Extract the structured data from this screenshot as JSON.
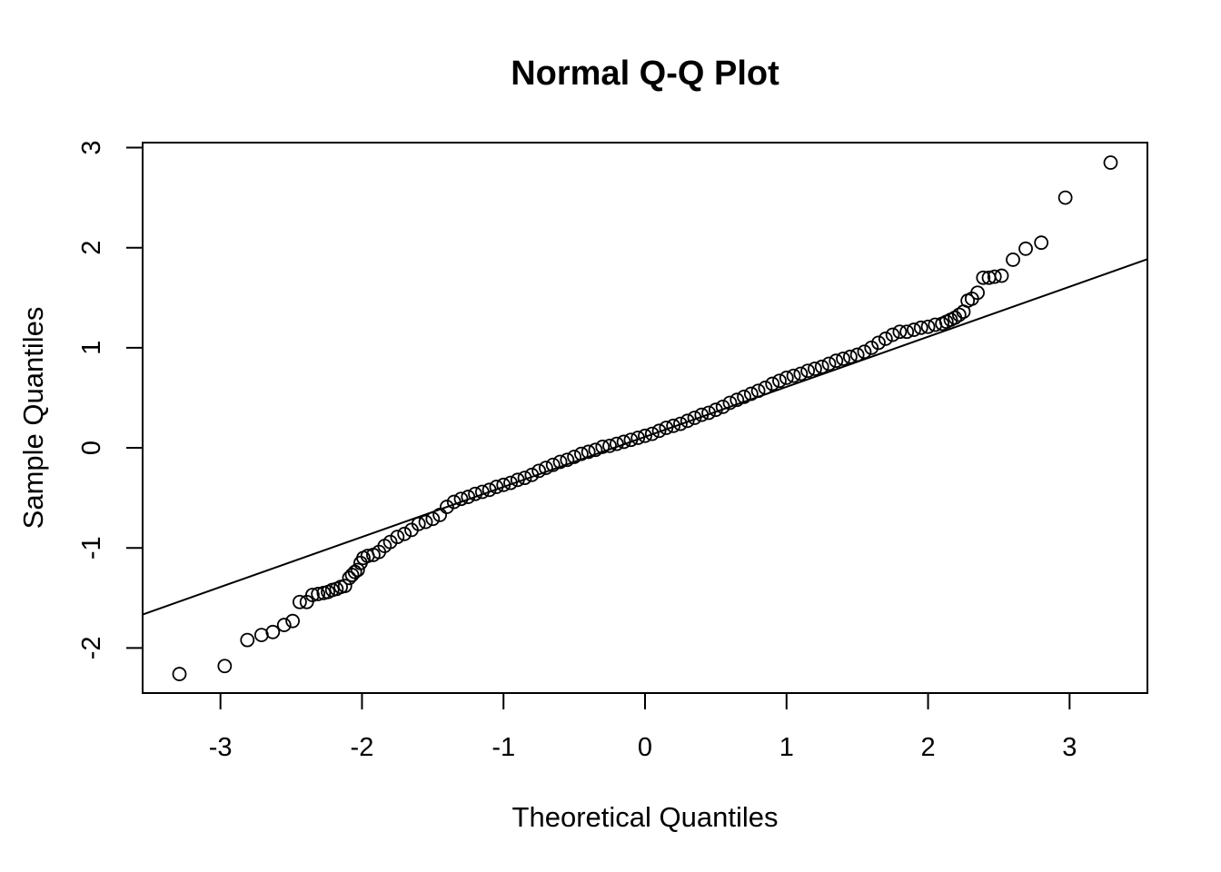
{
  "chart_data": {
    "type": "scatter",
    "title": "Normal Q-Q Plot",
    "xlabel": "Theoretical Quantiles",
    "ylabel": "Sample Quantiles",
    "xlim": [
      -3.55,
      3.55
    ],
    "ylim": [
      -2.45,
      3.05
    ],
    "x_ticks": [
      {
        "value": -3,
        "label": "-3"
      },
      {
        "value": -2,
        "label": "-2"
      },
      {
        "value": -1,
        "label": "-1"
      },
      {
        "value": 0,
        "label": "0"
      },
      {
        "value": 1,
        "label": "1"
      },
      {
        "value": 2,
        "label": "2"
      },
      {
        "value": 3,
        "label": "3"
      }
    ],
    "y_ticks": [
      {
        "value": -2,
        "label": "-2"
      },
      {
        "value": -1,
        "label": "-1"
      },
      {
        "value": 0,
        "label": "0"
      },
      {
        "value": 1,
        "label": "1"
      },
      {
        "value": 2,
        "label": "2"
      },
      {
        "value": 3,
        "label": "3"
      }
    ],
    "grid": false,
    "marker": "open-circle",
    "reference_line": {
      "intercept": 0.11,
      "slope": 0.5
    },
    "series": [
      {
        "x": [
          -3.29,
          -2.97,
          -2.81,
          -2.71,
          -2.63,
          -2.55,
          -2.49,
          -2.44,
          -2.39,
          -2.35,
          -2.31,
          -2.27,
          -2.24,
          -2.21,
          -2.18,
          -2.15,
          -2.12,
          -2.09,
          -2.07,
          -2.05,
          -2.03,
          -2.01,
          -1.99,
          -1.96,
          -1.92,
          -1.88,
          -1.84,
          -1.8,
          -1.75,
          -1.7,
          -1.65,
          -1.6,
          -1.55,
          -1.5,
          -1.45,
          -1.4,
          -1.35,
          -1.3,
          -1.25,
          -1.2,
          -1.15,
          -1.1,
          -1.05,
          -1.0,
          -0.95,
          -0.9,
          -0.85,
          -0.8,
          -0.75,
          -0.7,
          -0.65,
          -0.6,
          -0.55,
          -0.5,
          -0.45,
          -0.4,
          -0.35,
          -0.3,
          -0.25,
          -0.2,
          -0.15,
          -0.1,
          -0.05,
          0.0,
          0.05,
          0.1,
          0.15,
          0.2,
          0.25,
          0.3,
          0.35,
          0.4,
          0.45,
          0.5,
          0.55,
          0.6,
          0.65,
          0.7,
          0.75,
          0.8,
          0.85,
          0.9,
          0.95,
          1.0,
          1.05,
          1.1,
          1.15,
          1.2,
          1.25,
          1.3,
          1.35,
          1.4,
          1.45,
          1.5,
          1.55,
          1.6,
          1.65,
          1.7,
          1.75,
          1.8,
          1.85,
          1.9,
          1.95,
          2.0,
          2.05,
          2.1,
          2.13,
          2.16,
          2.19,
          2.22,
          2.25,
          2.28,
          2.31,
          2.35,
          2.39,
          2.43,
          2.47,
          2.52,
          2.6,
          2.69,
          2.8,
          2.97,
          3.29
        ],
        "y": [
          -2.26,
          -2.18,
          -1.92,
          -1.87,
          -1.84,
          -1.77,
          -1.73,
          -1.54,
          -1.54,
          -1.47,
          -1.46,
          -1.45,
          -1.44,
          -1.42,
          -1.41,
          -1.39,
          -1.38,
          -1.3,
          -1.27,
          -1.24,
          -1.22,
          -1.15,
          -1.1,
          -1.08,
          -1.07,
          -1.04,
          -0.98,
          -0.94,
          -0.89,
          -0.86,
          -0.82,
          -0.76,
          -0.74,
          -0.71,
          -0.67,
          -0.59,
          -0.54,
          -0.51,
          -0.49,
          -0.46,
          -0.44,
          -0.42,
          -0.39,
          -0.37,
          -0.35,
          -0.32,
          -0.3,
          -0.27,
          -0.23,
          -0.2,
          -0.17,
          -0.14,
          -0.12,
          -0.09,
          -0.06,
          -0.04,
          -0.02,
          0.01,
          0.02,
          0.04,
          0.06,
          0.08,
          0.1,
          0.12,
          0.14,
          0.17,
          0.2,
          0.22,
          0.24,
          0.27,
          0.3,
          0.33,
          0.35,
          0.38,
          0.41,
          0.45,
          0.48,
          0.51,
          0.54,
          0.57,
          0.6,
          0.64,
          0.67,
          0.7,
          0.72,
          0.74,
          0.77,
          0.79,
          0.81,
          0.84,
          0.87,
          0.89,
          0.91,
          0.93,
          0.96,
          1.0,
          1.05,
          1.09,
          1.13,
          1.16,
          1.16,
          1.18,
          1.2,
          1.21,
          1.23,
          1.24,
          1.26,
          1.28,
          1.3,
          1.33,
          1.36,
          1.47,
          1.49,
          1.55,
          1.7,
          1.7,
          1.71,
          1.72,
          1.88,
          1.99,
          2.05,
          2.5,
          2.85
        ]
      }
    ]
  }
}
